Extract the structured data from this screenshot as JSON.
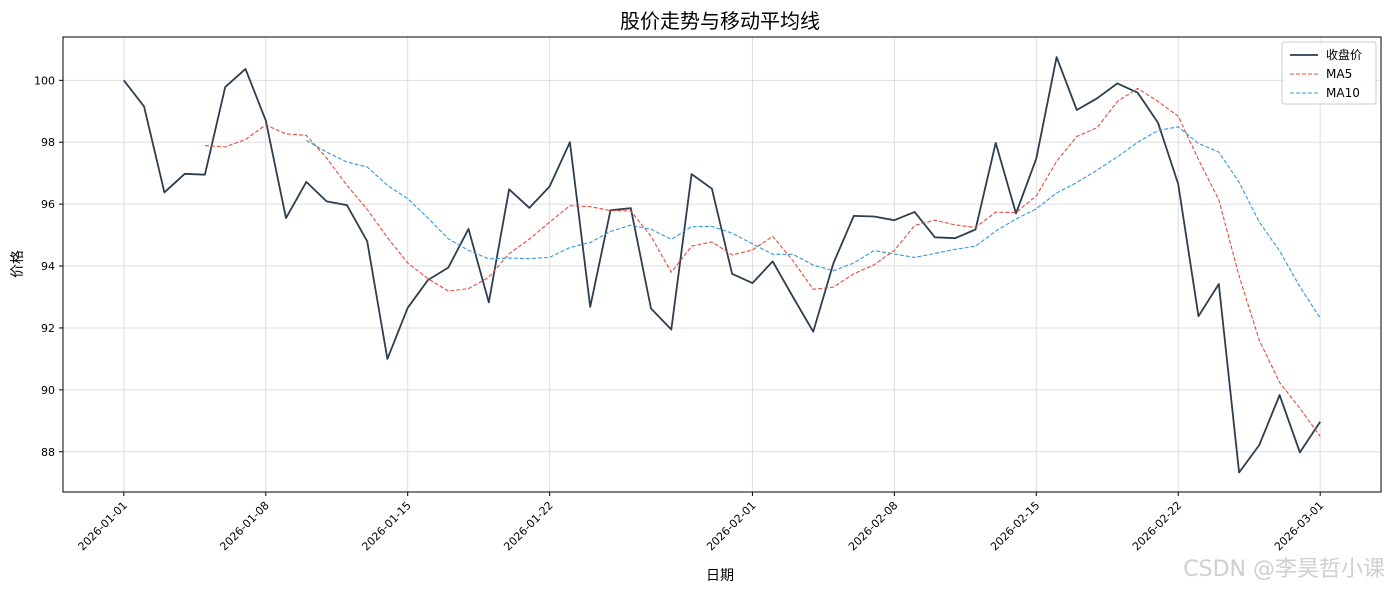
{
  "chart_data": {
    "type": "line",
    "title": "股价走势与移动平均线",
    "xlabel": "日期",
    "ylabel": "价格",
    "grid": true,
    "legend_position": "top-right",
    "x_start": "2026-01-01",
    "x_end": "2026-03-01",
    "xlim": [
      "2025-12-29",
      "2026-03-04"
    ],
    "ylim": [
      86.7,
      101.4
    ],
    "x_ticks": [
      "2026-01-01",
      "2026-01-08",
      "2026-01-15",
      "2026-01-22",
      "2026-02-01",
      "2026-02-08",
      "2026-02-15",
      "2026-02-22",
      "2026-03-01"
    ],
    "y_ticks": [
      88,
      90,
      92,
      94,
      96,
      98,
      100
    ],
    "series": [
      {
        "name": "收盘价",
        "color": "#2c3e50",
        "style": "solid",
        "values": [
          100.0,
          99.15,
          96.38,
          96.98,
          96.95,
          99.78,
          100.37,
          98.7,
          95.55,
          96.72,
          96.09,
          95.97,
          94.8,
          91.0,
          92.65,
          93.55,
          93.95,
          95.2,
          92.83,
          96.48,
          95.88,
          96.57,
          98.0,
          92.68,
          95.8,
          95.87,
          92.63,
          91.95,
          96.97,
          96.5,
          93.75,
          93.45,
          94.15,
          93.0,
          91.88,
          94.1,
          95.62,
          95.6,
          95.48,
          95.75,
          94.93,
          94.9,
          95.18,
          97.98,
          95.7,
          97.47,
          100.75,
          99.04,
          99.42,
          99.9,
          99.6,
          98.63,
          96.65,
          92.38,
          93.42,
          87.33,
          88.22,
          89.83,
          87.98,
          88.97
        ]
      },
      {
        "name": "MA5",
        "color": "#e74c3c",
        "style": "dashed",
        "start_index": 4,
        "values": [
          97.89,
          97.85,
          98.09,
          98.56,
          98.27,
          98.22,
          97.49,
          96.61,
          95.83,
          94.92,
          94.1,
          93.59,
          93.19,
          93.27,
          93.64,
          94.4,
          94.87,
          95.42,
          95.95,
          95.92,
          95.79,
          95.78,
          94.96,
          93.8,
          94.64,
          94.78,
          94.36,
          94.52,
          94.96,
          94.17,
          93.25,
          93.32,
          93.75,
          94.04,
          94.51,
          95.31,
          95.48,
          95.33,
          95.25,
          95.74,
          95.73,
          96.27,
          97.38,
          98.19,
          98.47,
          99.32,
          99.74,
          99.32,
          98.84,
          97.44,
          96.14,
          93.68,
          91.6,
          90.24,
          89.4,
          88.5
        ]
      },
      {
        "name": "MA10",
        "color": "#3498db",
        "style": "dashed",
        "start_index": 9,
        "values": [
          98.06,
          97.68,
          97.36,
          97.2,
          96.61,
          96.18,
          95.55,
          94.88,
          94.51,
          94.23,
          94.26,
          94.24,
          94.28,
          94.6,
          94.76,
          95.12,
          95.32,
          95.19,
          94.86,
          95.27,
          95.28,
          95.06,
          94.72,
          94.38,
          94.38,
          94.03,
          93.85,
          94.1,
          94.5,
          94.39,
          94.28,
          94.41,
          94.54,
          94.64,
          95.13,
          95.52,
          95.85,
          96.36,
          96.7,
          97.1,
          97.53,
          98.0,
          98.38,
          98.5,
          97.96,
          97.68,
          96.71,
          95.42,
          94.49,
          93.33,
          92.32
        ]
      }
    ],
    "watermark": "CSDN @李昊哲小课"
  }
}
